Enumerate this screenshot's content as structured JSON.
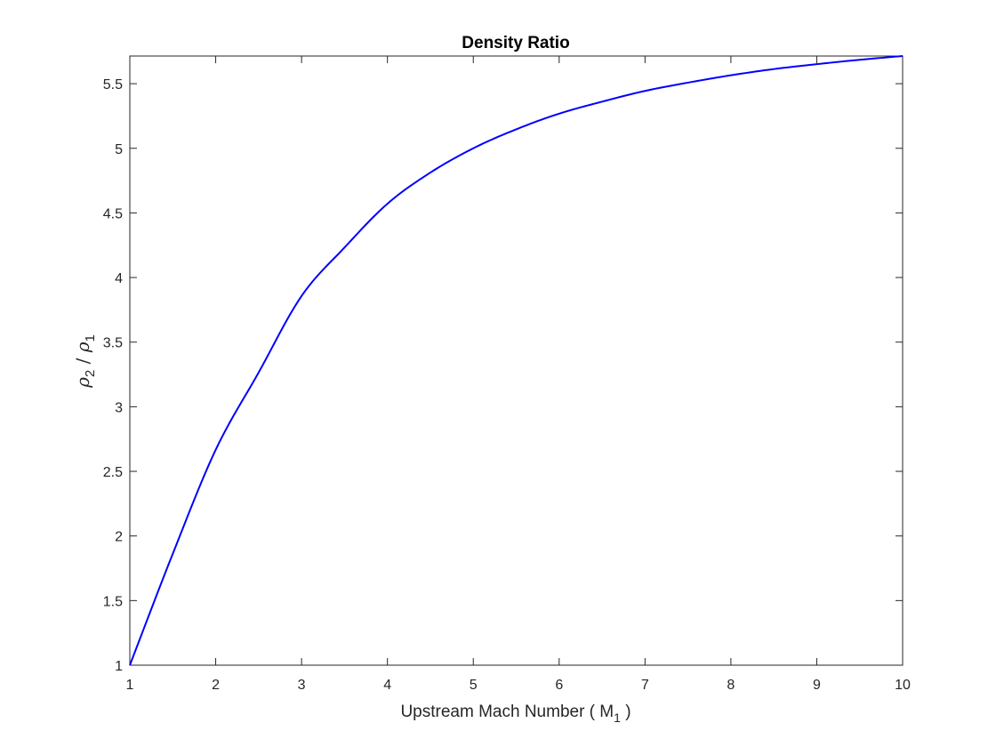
{
  "chart_data": {
    "type": "line",
    "title": "Density Ratio",
    "xlabel": {
      "text": "Upstream Mach Number ( M",
      "subscript": "1",
      "suffix": " )"
    },
    "ylabel": {
      "numerator": "ρ",
      "numerator_subscript": "2",
      "separator": " / ",
      "denominator": "ρ",
      "denominator_subscript": "1"
    },
    "xlim": [
      1,
      10
    ],
    "ylim": [
      1,
      5.714
    ],
    "x_ticks": [
      1,
      2,
      3,
      4,
      5,
      6,
      7,
      8,
      9,
      10
    ],
    "x_tick_labels": [
      "1",
      "2",
      "3",
      "4",
      "5",
      "6",
      "7",
      "8",
      "9",
      "10"
    ],
    "y_ticks": [
      1,
      1.5,
      2,
      2.5,
      3,
      3.5,
      4,
      4.5,
      5,
      5.5
    ],
    "y_tick_labels": [
      "1",
      "1.5",
      "2",
      "2.5",
      "3",
      "3.5",
      "4",
      "4.5",
      "5",
      "5.5"
    ],
    "grid": false,
    "series": [
      {
        "color": "#0000ff",
        "x": [
          1,
          1.5,
          2,
          2.5,
          3,
          3.5,
          4,
          4.5,
          5,
          5.5,
          6,
          6.5,
          7,
          7.5,
          8,
          8.5,
          9,
          9.5,
          10
        ],
        "y": [
          1.0,
          1.862,
          2.667,
          3.265,
          3.857,
          4.232,
          4.571,
          4.812,
          5.0,
          5.147,
          5.268,
          5.361,
          5.444,
          5.508,
          5.565,
          5.613,
          5.651,
          5.685,
          5.714
        ]
      }
    ]
  }
}
